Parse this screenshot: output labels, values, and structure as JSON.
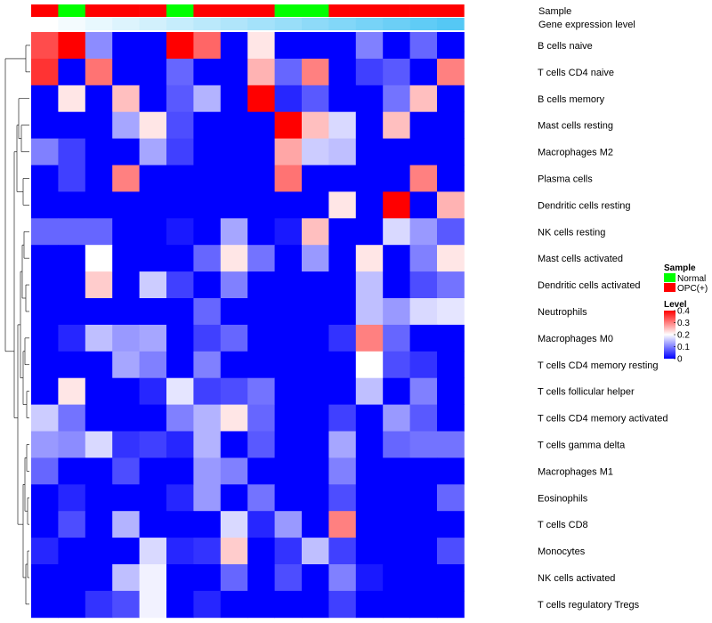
{
  "chart_data": {
    "type": "heatmap",
    "annotations": [
      {
        "label": "Sample"
      },
      {
        "label": "Gene expression level"
      }
    ],
    "sample_groups": [
      "OPC(+)",
      "Normal",
      "OPC(+)",
      "OPC(+)",
      "OPC(+)",
      "Normal",
      "OPC(+)",
      "OPC(+)",
      "OPC(+)",
      "Normal",
      "Normal",
      "OPC(+)",
      "OPC(+)",
      "OPC(+)",
      "OPC(+)",
      "OPC(+)"
    ],
    "expression_levels": [
      0.0,
      0.04,
      0.08,
      0.12,
      0.16,
      0.2,
      0.24,
      0.28,
      0.32,
      0.36,
      0.4,
      0.44,
      0.48,
      0.52,
      0.56,
      0.6
    ],
    "rows": [
      "B cells naive",
      "T cells CD4 naive",
      "B cells memory",
      "Mast cells resting",
      "Macrophages M2",
      "Plasma cells",
      "Dendritic cells resting",
      "NK cells resting",
      "Mast cells activated",
      "Dendritic cells activated",
      "Neutrophils",
      "Macrophages M0",
      "T cells CD4 memory resting",
      "T cells follicular helper",
      "T cells CD4 memory activated",
      "T cells gamma delta",
      "Macrophages M1",
      "Eosinophils",
      "T cells CD8",
      "Monocytes",
      "NK cells activated",
      "T cells regulatory  Tregs"
    ],
    "values": [
      [
        0.34,
        0.4,
        0.11,
        0.0,
        0.0,
        0.4,
        0.32,
        0.0,
        0.22,
        0.0,
        0.0,
        0.0,
        0.1,
        0.0,
        0.08,
        0.0
      ],
      [
        0.36,
        0.0,
        0.31,
        0.0,
        0.0,
        0.08,
        0.0,
        0.0,
        0.26,
        0.08,
        0.3,
        0.0,
        0.05,
        0.07,
        0.0,
        0.3
      ],
      [
        0.0,
        0.22,
        0.0,
        0.25,
        0.0,
        0.07,
        0.14,
        0.0,
        0.4,
        0.03,
        0.07,
        0.0,
        0.0,
        0.09,
        0.25,
        0.0
      ],
      [
        0.0,
        0.0,
        0.0,
        0.13,
        0.22,
        0.06,
        0.0,
        0.0,
        0.0,
        0.4,
        0.25,
        0.17,
        0.0,
        0.25,
        0.0,
        0.0
      ],
      [
        0.1,
        0.05,
        0.0,
        0.0,
        0.13,
        0.05,
        0.0,
        0.0,
        0.0,
        0.27,
        0.16,
        0.15,
        0.0,
        0.0,
        0.0,
        0.0
      ],
      [
        0.0,
        0.05,
        0.0,
        0.3,
        0.0,
        0.0,
        0.0,
        0.0,
        0.0,
        0.31,
        0.0,
        0.0,
        0.0,
        0.0,
        0.3,
        0.0
      ],
      [
        0.0,
        0.0,
        0.0,
        0.0,
        0.0,
        0.0,
        0.0,
        0.0,
        0.0,
        0.0,
        0.0,
        0.22,
        0.0,
        0.4,
        0.0,
        0.26
      ],
      [
        0.08,
        0.08,
        0.08,
        0.0,
        0.0,
        0.02,
        0.0,
        0.13,
        0.0,
        0.02,
        0.25,
        0.0,
        0.0,
        0.17,
        0.12,
        0.07
      ],
      [
        0.0,
        0.0,
        0.2,
        0.0,
        0.0,
        0.0,
        0.08,
        0.22,
        0.09,
        0.0,
        0.12,
        0.0,
        0.22,
        0.0,
        0.1,
        0.22
      ],
      [
        0.0,
        0.0,
        0.24,
        0.0,
        0.16,
        0.05,
        0.0,
        0.1,
        0.0,
        0.0,
        0.0,
        0.0,
        0.15,
        0.0,
        0.06,
        0.09
      ],
      [
        0.0,
        0.0,
        0.0,
        0.0,
        0.0,
        0.0,
        0.08,
        0.0,
        0.0,
        0.0,
        0.0,
        0.0,
        0.15,
        0.12,
        0.17,
        0.18
      ],
      [
        0.0,
        0.03,
        0.15,
        0.12,
        0.13,
        0.0,
        0.05,
        0.08,
        0.0,
        0.0,
        0.0,
        0.04,
        0.3,
        0.08,
        0.0,
        0.0
      ],
      [
        0.0,
        0.0,
        0.0,
        0.13,
        0.1,
        0.0,
        0.1,
        0.0,
        0.0,
        0.0,
        0.0,
        0.0,
        0.2,
        0.06,
        0.04,
        0.0
      ],
      [
        0.0,
        0.22,
        0.0,
        0.0,
        0.03,
        0.18,
        0.05,
        0.06,
        0.09,
        0.0,
        0.0,
        0.0,
        0.15,
        0.0,
        0.1,
        0.0
      ],
      [
        0.16,
        0.09,
        0.0,
        0.0,
        0.0,
        0.1,
        0.14,
        0.22,
        0.08,
        0.0,
        0.0,
        0.05,
        0.0,
        0.12,
        0.07,
        0.0
      ],
      [
        0.12,
        0.11,
        0.17,
        0.04,
        0.05,
        0.03,
        0.14,
        0.0,
        0.07,
        0.0,
        0.0,
        0.13,
        0.0,
        0.08,
        0.09,
        0.09
      ],
      [
        0.08,
        0.0,
        0.0,
        0.06,
        0.0,
        0.0,
        0.12,
        0.1,
        0.0,
        0.0,
        0.0,
        0.1,
        0.0,
        0.0,
        0.0,
        0.0
      ],
      [
        0.0,
        0.03,
        0.0,
        0.0,
        0.0,
        0.03,
        0.12,
        0.0,
        0.09,
        0.0,
        0.0,
        0.06,
        0.0,
        0.0,
        0.0,
        0.08
      ],
      [
        0.0,
        0.06,
        0.0,
        0.14,
        0.0,
        0.0,
        0.0,
        0.17,
        0.03,
        0.12,
        0.0,
        0.3,
        0.0,
        0.0,
        0.0,
        0.0
      ],
      [
        0.03,
        0.0,
        0.0,
        0.0,
        0.17,
        0.03,
        0.04,
        0.24,
        0.0,
        0.04,
        0.15,
        0.05,
        0.0,
        0.0,
        0.0,
        0.06
      ],
      [
        0.0,
        0.0,
        0.0,
        0.15,
        0.19,
        0.0,
        0.0,
        0.08,
        0.0,
        0.06,
        0.0,
        0.1,
        0.02,
        0.0,
        0.0,
        0.0
      ],
      [
        0.0,
        0.0,
        0.04,
        0.06,
        0.19,
        0.0,
        0.03,
        0.0,
        0.0,
        0.0,
        0.0,
        0.05,
        0.0,
        0.0,
        0.0,
        0.0
      ]
    ],
    "legend": {
      "sample": {
        "title": "Sample",
        "entries": [
          {
            "label": "Normal",
            "color": "#00ff00"
          },
          {
            "label": "OPC(+)",
            "color": "#ff0000"
          }
        ]
      },
      "level": {
        "title": "Level",
        "ticks": [
          {
            "label": "0.4",
            "value": 0.4
          },
          {
            "label": "0.3",
            "value": 0.3
          },
          {
            "label": "0.2",
            "value": 0.2
          },
          {
            "label": "0.1",
            "value": 0.1
          },
          {
            "label": "0",
            "value": 0.0
          }
        ]
      }
    },
    "colors": {
      "low": "#0000ff",
      "mid": "#ffffff",
      "high": "#ff0000",
      "expr_low": "#ffffff",
      "expr_high": "#55c8f5"
    },
    "value_range": [
      0,
      0.4
    ],
    "midpoint": 0.2,
    "grid": false,
    "legend_position": "right"
  }
}
